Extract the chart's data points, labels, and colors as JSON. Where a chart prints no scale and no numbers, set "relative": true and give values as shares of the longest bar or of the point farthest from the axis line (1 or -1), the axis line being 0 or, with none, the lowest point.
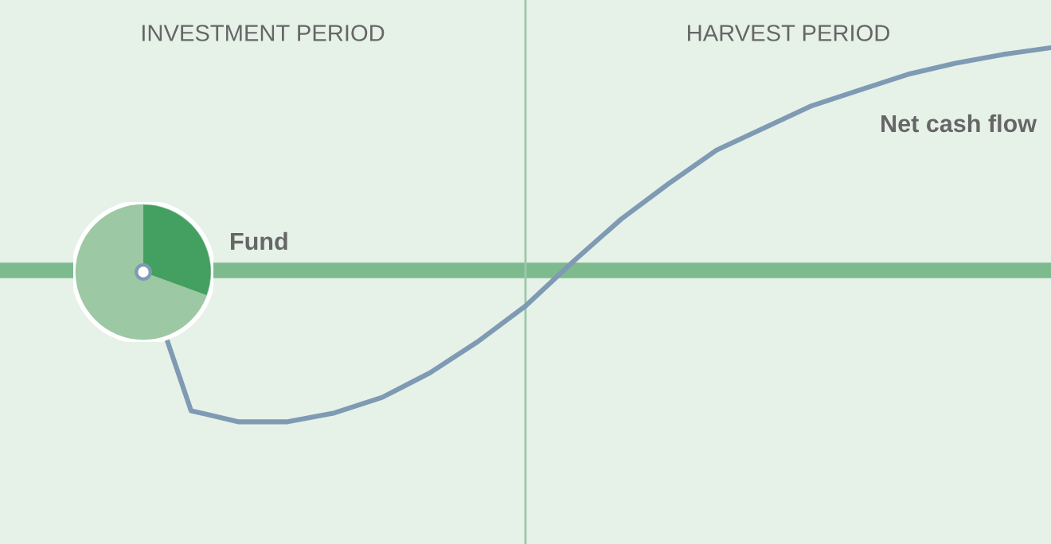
{
  "chart_data": {
    "type": "line",
    "relative": true,
    "line_style": "solid",
    "categories": [
      null,
      null,
      null,
      null,
      null,
      null,
      null,
      null,
      null,
      null,
      null,
      null,
      null,
      null,
      null,
      null,
      null,
      null,
      null,
      null
    ],
    "series": [
      {
        "name": "Net cash flow",
        "color": "#7f9ab3",
        "values": [
          0,
          -0.63,
          -0.68,
          -0.68,
          -0.64,
          -0.57,
          -0.46,
          -0.32,
          -0.16,
          0.04,
          0.23,
          0.39,
          0.54,
          0.64,
          0.74,
          0.81,
          0.88,
          0.93,
          0.97,
          1
        ]
      }
    ],
    "ref_lines": [
      {
        "axis": "y",
        "value": 0,
        "label": "Fund",
        "color": "#7dbb8f"
      }
    ],
    "annotations": [
      "INVESTMENT PERIOD",
      "HARVEST PERIOD"
    ]
  }
}
